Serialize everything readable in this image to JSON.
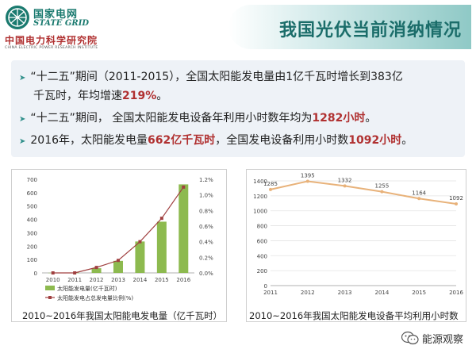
{
  "logo": {
    "name_cn": "国家电网",
    "name_en": "STATE GRID",
    "institute_cn": "中国电力科学研究院",
    "institute_en": "CHINA ELECTRIC POWER RESEARCH INSTITUTE"
  },
  "title": "我国光伏当前消纳情况",
  "bullets": [
    {
      "pre": "“十二五”期间（2011-2015），全国太阳能发电量由1亿千瓦时增长到383亿千瓦时，年均增速",
      "hl": "219%",
      "post": "。"
    },
    {
      "pre": "“十二五”期间， 全国太阳能发电设备年利用小时数年均为",
      "hl": "1282小时",
      "post": "。"
    },
    {
      "pre": "2016年，太阳能发电量",
      "hl": "662亿千瓦时",
      "mid": "，全国发电设备利用小时数",
      "hl2": "1092小时",
      "post": "。"
    }
  ],
  "colors": {
    "accent": "#1b6d6a",
    "highlight": "#b03030",
    "bar": "#8dba4f",
    "line": "#a04040",
    "orange_line": "#e8b27a"
  },
  "chart_data": [
    {
      "type": "bar",
      "categories": [
        "2010",
        "2011",
        "2012",
        "2013",
        "2014",
        "2015",
        "2016"
      ],
      "series": [
        {
          "name": "太阳能发电量(亿千瓦时)",
          "type": "bar",
          "axis": "left",
          "values": [
            1,
            1,
            35,
            90,
            235,
            383,
            662
          ]
        },
        {
          "name": "太阳能发电占总发电量比例(%)",
          "type": "line",
          "axis": "right",
          "values": [
            0.0,
            0.0,
            0.07,
            0.16,
            0.4,
            0.7,
            1.1
          ]
        }
      ],
      "ylim": [
        0,
        700
      ],
      "yticks": [
        0,
        100,
        200,
        300,
        400,
        500,
        600,
        700
      ],
      "y2lim": [
        0,
        1.2
      ],
      "y2ticks": [
        "0.0%",
        "0.2%",
        "0.4%",
        "0.6%",
        "0.8%",
        "1.0%",
        "1.2%"
      ],
      "grid": false,
      "legend": "bottom",
      "caption": "2010~2016年我国太阳能电发电量（亿千瓦时）"
    },
    {
      "type": "line",
      "categories": [
        "2011",
        "2012",
        "2013",
        "2014",
        "2015",
        "2016"
      ],
      "series": [
        {
          "values": [
            1285,
            1395,
            1332,
            1255,
            1164,
            1092
          ]
        }
      ],
      "labels": [
        "1285",
        "1395",
        "1332",
        "1255",
        "1164",
        "1092"
      ],
      "ylim": [
        0,
        1400
      ],
      "yticks": [
        0,
        200,
        400,
        600,
        800,
        1000,
        1200,
        1400
      ],
      "grid": true,
      "caption": "2010~2016年我国太阳能发电设备平均利用小时数"
    }
  ],
  "watermark": "能源观察"
}
